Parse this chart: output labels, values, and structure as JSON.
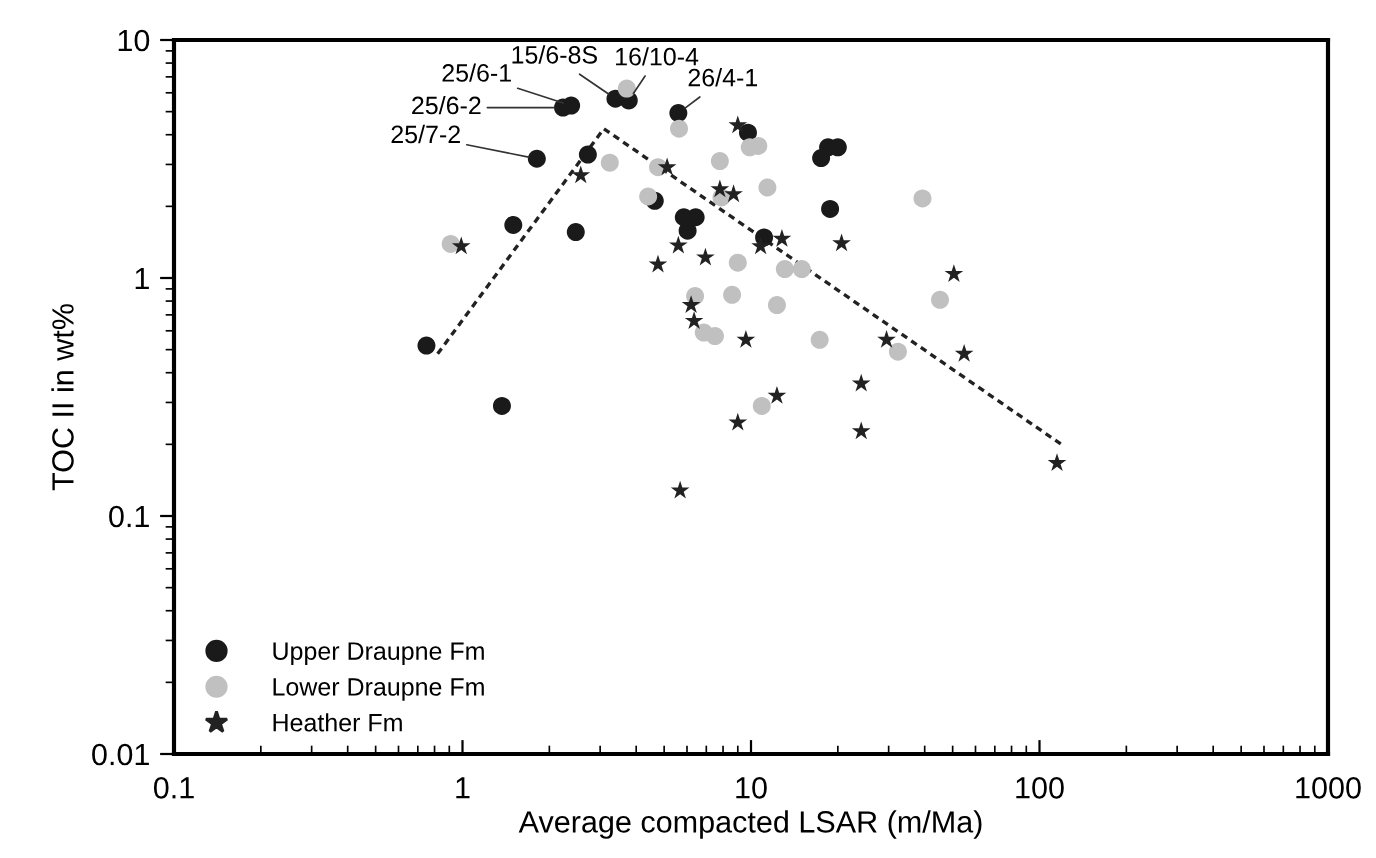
{
  "chart_data": {
    "type": "scatter",
    "xlabel": "Average compacted LSAR (m/Ma)",
    "ylabel": "TOC II in wt%",
    "log": "xy",
    "xlim": [
      0.1,
      1000
    ],
    "ylim": [
      0.01,
      10
    ],
    "xticks": [
      0.1,
      1,
      10,
      100,
      1000
    ],
    "yticks": [
      0.01,
      0.1,
      1,
      10
    ],
    "legend": "bottom left",
    "grid": false,
    "series": [
      {
        "name": "Upper Draupne Fm",
        "color": "#1a1a1a",
        "marker": "circle",
        "x": [
          0.75,
          1.37,
          1.5,
          1.81,
          2.23,
          2.38,
          2.47,
          2.72,
          3.39,
          3.77,
          5.6,
          4.64,
          5.85,
          6.43,
          6.03,
          9.76,
          17.5,
          18.5,
          20,
          18.8,
          11.1
        ],
        "values": [
          0.52,
          0.29,
          1.67,
          3.17,
          5.2,
          5.3,
          1.56,
          3.3,
          5.67,
          5.57,
          4.93,
          2.11,
          1.8,
          1.8,
          1.58,
          4.08,
          3.19,
          3.54,
          3.54,
          1.95,
          1.48
        ]
      },
      {
        "name": "Lower Draupne Fm",
        "color": "#c0c0c0",
        "marker": "circle",
        "x": [
          0.91,
          3.24,
          3.71,
          5.63,
          4.4,
          4.76,
          7.8,
          7.9,
          9.0,
          8.6,
          6.4,
          6.86,
          7.5,
          9.9,
          10.6,
          11.4,
          39.3,
          13.1,
          15,
          12.3,
          17.3,
          45.2,
          32.3,
          10.9
        ],
        "values": [
          1.39,
          3.05,
          6.25,
          4.24,
          2.2,
          2.92,
          3.1,
          2.18,
          1.16,
          0.85,
          0.84,
          0.59,
          0.57,
          3.54,
          3.59,
          2.4,
          2.16,
          1.09,
          1.09,
          0.77,
          0.55,
          0.81,
          0.49,
          0.29
        ]
      },
      {
        "name": "Heather Fm",
        "color": "#222222",
        "marker": "star",
        "x": [
          0.99,
          2.57,
          5.12,
          9.0,
          7.8,
          8.7,
          5.6,
          4.76,
          6.95,
          6.2,
          6.35,
          9.6,
          9.0,
          5.68,
          10.8,
          12.8,
          20.6,
          50.5,
          29.5,
          54.8,
          24.1,
          12.3,
          24.1,
          115
        ],
        "values": [
          1.36,
          2.7,
          2.92,
          4.38,
          2.36,
          2.25,
          1.37,
          1.14,
          1.22,
          0.77,
          0.66,
          0.55,
          0.247,
          0.128,
          1.36,
          1.46,
          1.4,
          1.04,
          0.55,
          0.48,
          0.36,
          0.32,
          0.227,
          0.167
        ]
      },
      {
        "type": "line",
        "color": "#222222",
        "line_style": "dotted",
        "marker": "none",
        "x": [
          0.82,
          3.09,
          119
        ],
        "values": [
          0.48,
          4.24,
          0.2
        ]
      }
    ],
    "annotations": [
      {
        "text": "25/7-2",
        "x": 1.81,
        "y": 3.17
      },
      {
        "text": "25/6-2",
        "x": 2.23,
        "y": 5.2
      },
      {
        "text": "25/6-1",
        "x": 2.38,
        "y": 5.3
      },
      {
        "text": "15/6-8S",
        "x": 3.39,
        "y": 5.67
      },
      {
        "text": "16/10-4",
        "x": 3.77,
        "y": 5.57
      },
      {
        "text": "26/4-1",
        "x": 5.6,
        "y": 4.93
      }
    ]
  }
}
